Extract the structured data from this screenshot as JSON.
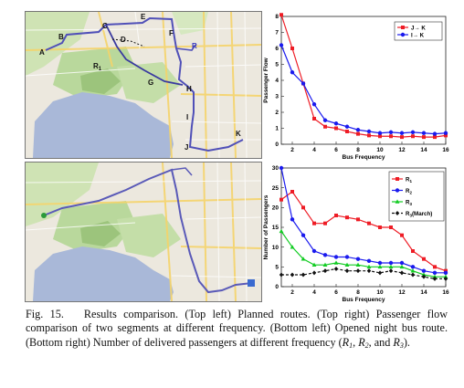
{
  "figure": {
    "caption_label": "Fig. 15.",
    "caption_text": "Results comparison. (Top left) Planned routes. (Top right) Passenger flow comparison of two segments at different frequency. (Bottom left) Opened night bus route. (Bottom right) Number of delivered passengers at different frequency (",
    "caption_vars": [
      "R",
      "1",
      ", ",
      "R",
      "2",
      ", and ",
      "R",
      "3",
      ")."
    ]
  },
  "map_top": {
    "point_labels": [
      "A",
      "B",
      "C",
      "D",
      "E",
      "F",
      "G",
      "H",
      "I",
      "J",
      "K",
      "R",
      "1",
      "R"
    ]
  },
  "chart_data": [
    {
      "type": "line",
      "ylabel": "Passenger Flow",
      "xlabel": "Bus Frequency",
      "xlim": [
        1,
        16
      ],
      "ylim": [
        0,
        8
      ],
      "xticks": [
        2,
        4,
        6,
        8,
        10,
        12,
        14,
        16
      ],
      "yticks": [
        0,
        1,
        2,
        3,
        4,
        5,
        6,
        7,
        8
      ],
      "legend_position": "top-right",
      "x": [
        1,
        2,
        3,
        4,
        5,
        6,
        7,
        8,
        9,
        10,
        11,
        12,
        13,
        14,
        15,
        16
      ],
      "series": [
        {
          "name": "J→ K",
          "color": "#ee1c25",
          "marker": "square",
          "values": [
            8.1,
            6.0,
            3.8,
            1.6,
            1.1,
            1.0,
            0.8,
            0.65,
            0.55,
            0.5,
            0.5,
            0.45,
            0.5,
            0.45,
            0.45,
            0.55
          ]
        },
        {
          "name": "I→ K",
          "color": "#1a1aee",
          "marker": "circle",
          "values": [
            6.2,
            4.5,
            3.8,
            2.5,
            1.5,
            1.3,
            1.1,
            0.9,
            0.8,
            0.7,
            0.75,
            0.7,
            0.75,
            0.7,
            0.65,
            0.7
          ]
        }
      ]
    },
    {
      "type": "line",
      "ylabel": "Number of Passengers",
      "xlabel": "Bus Frequency",
      "xlim": [
        1,
        16
      ],
      "ylim": [
        0,
        30
      ],
      "xticks": [
        2,
        4,
        6,
        8,
        10,
        12,
        14,
        16
      ],
      "yticks": [
        0,
        5,
        10,
        15,
        20,
        25,
        30
      ],
      "legend_position": "top-right",
      "x": [
        1,
        2,
        3,
        4,
        5,
        6,
        7,
        8,
        9,
        10,
        11,
        12,
        13,
        14,
        15,
        16
      ],
      "series": [
        {
          "name": "R1",
          "color": "#ee1c25",
          "marker": "square",
          "values": [
            22,
            24,
            20,
            16,
            16,
            18,
            17.5,
            17,
            16,
            15,
            15,
            13,
            9,
            7,
            5,
            4
          ]
        },
        {
          "name": "R2",
          "color": "#1a1aee",
          "marker": "circle",
          "values": [
            30,
            17,
            13,
            9,
            8,
            7.5,
            7.5,
            7,
            6.5,
            6,
            6,
            6,
            5,
            4,
            3.5,
            3.5
          ]
        },
        {
          "name": "R3",
          "color": "#11cc22",
          "marker": "triangle",
          "values": [
            14,
            10,
            7,
            5.5,
            5.5,
            6,
            5.5,
            5.5,
            5,
            5,
            5,
            5,
            4,
            3,
            2.5,
            2.5
          ]
        },
        {
          "name": "R3(March)",
          "color": "#111111",
          "marker": "diamond",
          "dashed": true,
          "values": [
            3,
            3,
            3,
            3.5,
            4,
            4.5,
            4,
            4,
            4,
            3.5,
            4,
            3.5,
            3,
            2.5,
            2,
            2
          ]
        }
      ]
    }
  ]
}
